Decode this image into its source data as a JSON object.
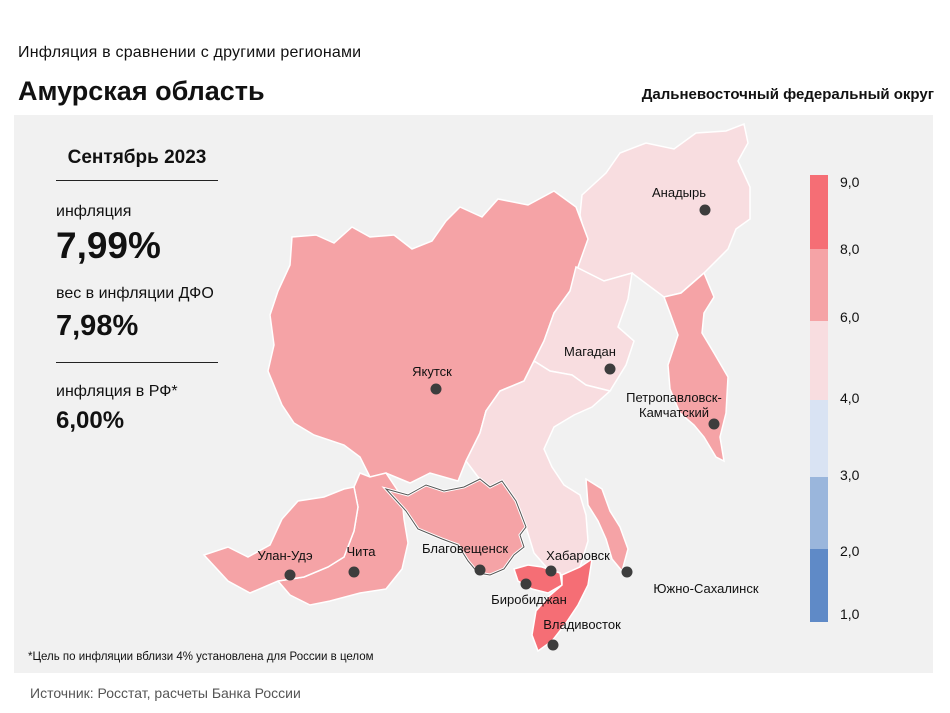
{
  "header": {
    "subtitle": "Инфляция  в сравнении  с другими  регионами",
    "title": "Амурская область",
    "district": "Дальневосточный федеральный округ"
  },
  "stats": {
    "period": "Сентябрь 2023",
    "inflation_label": "инфляция",
    "inflation_value": "7,99%",
    "weight_label": "вес в инфляции  ДФО",
    "weight_value": "7,98%",
    "rf_label": "инфляция  в РФ*",
    "rf_value": "6,00%"
  },
  "colors": {
    "panel": "#f1f1f1",
    "border": "#ffffff",
    "bin_8_9": "#f56e75",
    "bin_6_8": "#f5a3a6",
    "bin_4_6": "#f8dde0",
    "bin_3_4": "#d9e3f3",
    "bin_2_3": "#9ab6dc",
    "bin_1_2": "#5f8ac7",
    "city_dot": "#3d3d3d"
  },
  "legend": {
    "ticks": [
      "9,0",
      "8,0",
      "6,0",
      "4,0",
      "3,0",
      "2,0",
      "1,0"
    ]
  },
  "regions": [
    {
      "name": "Чукотский АО",
      "bin": "4-6"
    },
    {
      "name": "Республика Саха (Якутия)",
      "bin": "6-8"
    },
    {
      "name": "Магаданская область",
      "bin": "4-6"
    },
    {
      "name": "Камчатский край",
      "bin": "6-8"
    },
    {
      "name": "Хабаровский край",
      "bin": "4-6"
    },
    {
      "name": "Сахалинская область",
      "bin": "6-8"
    },
    {
      "name": "Амурская область",
      "bin": "6-8",
      "highlighted": true
    },
    {
      "name": "Еврейская АО",
      "bin": "8-9"
    },
    {
      "name": "Приморский край",
      "bin": "8-9"
    },
    {
      "name": "Забайкальский край",
      "bin": "6-8"
    },
    {
      "name": "Республика Бурятия",
      "bin": "6-8"
    }
  ],
  "cities": [
    "Анадырь",
    "Якутск",
    "Магадан",
    "Петропавловск-\nКамчатский",
    "Благовещенск",
    "Хабаровск",
    "Биробиджан",
    "Владивосток",
    "Южно-Сахалинск",
    "Улан-Удэ",
    "Чита"
  ],
  "footnote": "*Цель по инфляции вблизи 4% установлена для России в целом",
  "source": "Источник: Росстат, расчеты  Банка  России"
}
